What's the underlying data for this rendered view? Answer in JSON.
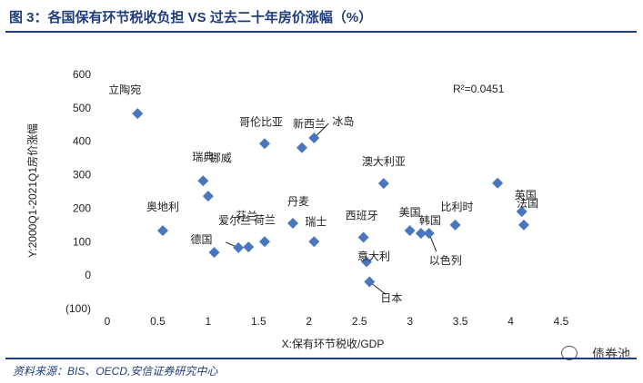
{
  "header": {
    "title": "图 3：各国保有环节税收负担 VS 过去二十年房价涨幅（%）"
  },
  "footer": {
    "source": "资料来源：BIS、OECD,安信证券研究中心",
    "brand": "债券池"
  },
  "colors": {
    "marker": "#4a76bd",
    "title": "#1f3d7a",
    "neg_tick": "#c00000"
  },
  "chart_data": {
    "type": "scatter",
    "xlabel": "X:保有环节税收/GDP",
    "ylabel": "Y:2000Q1-2021Q1房价涨幅",
    "xlim": [
      0,
      4.5
    ],
    "ylim": [
      -100,
      600
    ],
    "xticks": [
      "0",
      "0.5",
      "1",
      "1.5",
      "2",
      "2.5",
      "3",
      "3.5",
      "4",
      "4.5"
    ],
    "yticks": [
      "600",
      "500",
      "400",
      "300",
      "200",
      "100",
      "0",
      "(100)"
    ],
    "annotation": "R²=0.0451",
    "points": [
      {
        "label": "立陶宛",
        "x": 0.3,
        "y": 483
      },
      {
        "label": "奥地利",
        "x": 0.55,
        "y": 133
      },
      {
        "label": "瑞典",
        "x": 0.95,
        "y": 282
      },
      {
        "label": "挪威",
        "x": 1.0,
        "y": 236
      },
      {
        "label": "德国",
        "x": 1.06,
        "y": 68
      },
      {
        "label": "爱尔兰",
        "x": 1.3,
        "y": 82
      },
      {
        "label": "芬兰",
        "x": 1.4,
        "y": 84
      },
      {
        "label": "荷兰",
        "x": 1.56,
        "y": 100
      },
      {
        "label": "哥伦比亚",
        "x": 1.56,
        "y": 393
      },
      {
        "label": "丹麦",
        "x": 1.84,
        "y": 155
      },
      {
        "label": "新西兰",
        "x": 1.93,
        "y": 381
      },
      {
        "label": "冰岛",
        "x": 2.05,
        "y": 410
      },
      {
        "label": "瑞士",
        "x": 2.05,
        "y": 100
      },
      {
        "label": "西班牙",
        "x": 2.54,
        "y": 113
      },
      {
        "label": "意大利",
        "x": 2.57,
        "y": 40
      },
      {
        "label": "日本",
        "x": 2.6,
        "y": -20
      },
      {
        "label": "澳大利亚",
        "x": 2.74,
        "y": 274
      },
      {
        "label": "美国",
        "x": 3.0,
        "y": 133
      },
      {
        "label": "韩国",
        "x": 3.11,
        "y": 125
      },
      {
        "label": "以色列",
        "x": 3.19,
        "y": 125
      },
      {
        "label": "比利时",
        "x": 3.45,
        "y": 150
      },
      {
        "label": "",
        "x": 3.87,
        "y": 275
      },
      {
        "label": "英国",
        "x": 4.11,
        "y": 190
      },
      {
        "label": "法国",
        "x": 4.13,
        "y": 150
      }
    ]
  }
}
